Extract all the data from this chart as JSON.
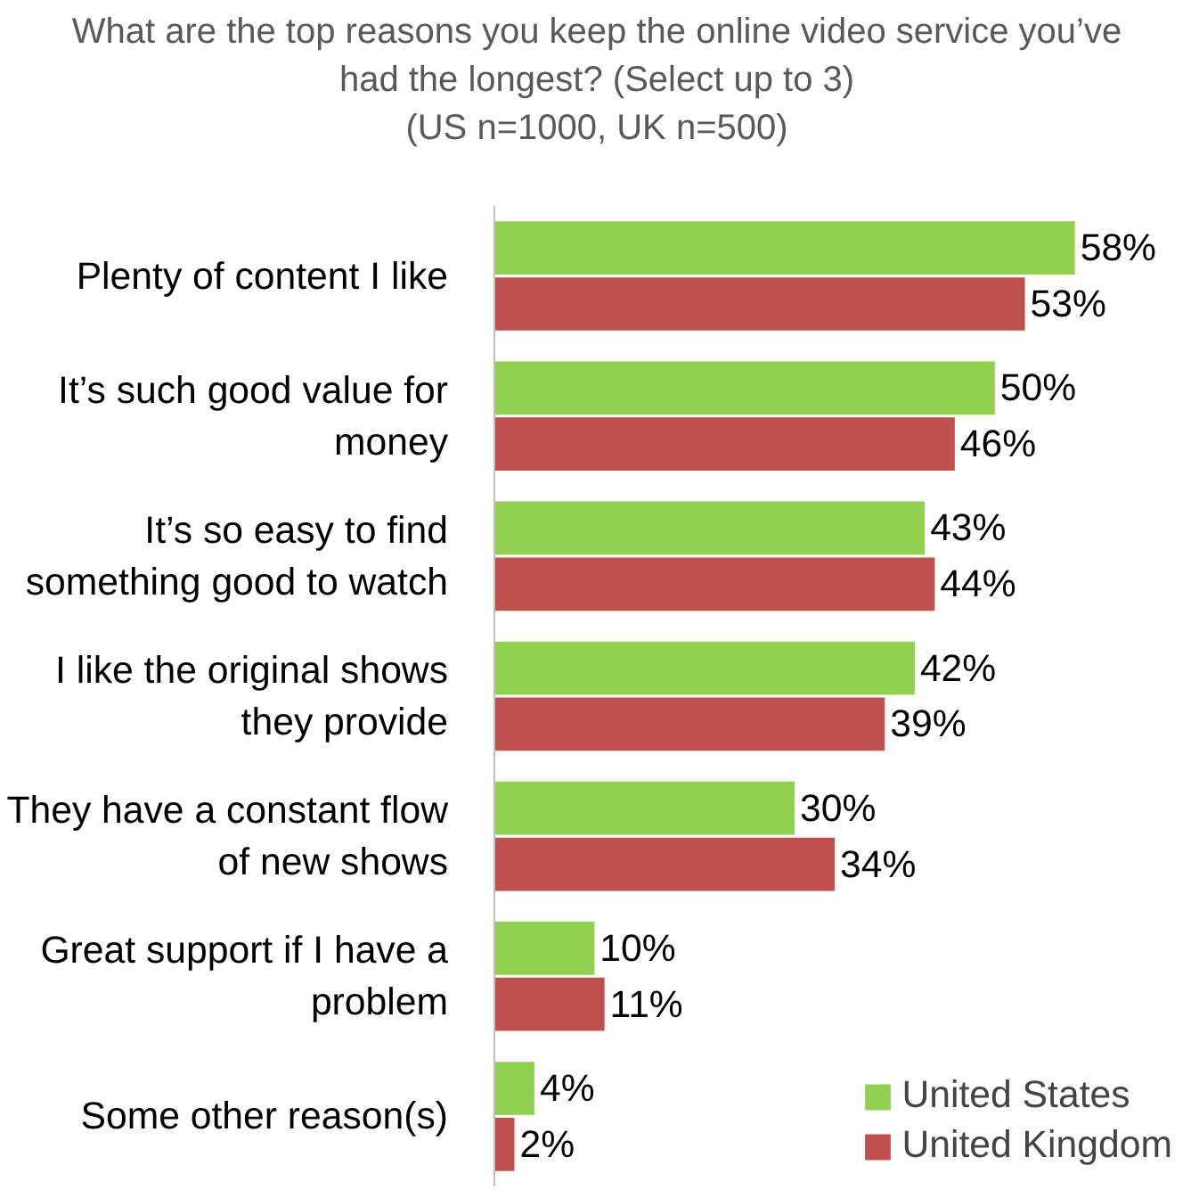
{
  "chart_data": {
    "type": "bar",
    "orientation": "horizontal",
    "title": "What are the top reasons you keep the online video service  you’ve had the longest? (Select up to 3)",
    "subtitle": "(US n=1000, UK n=500)",
    "categories": [
      "Plenty of content I like",
      "It’s such good value for money",
      "It’s so easy to find something good to watch",
      "I like the original shows they provide",
      "They have a constant flow of new shows",
      "Great support if I have a problem",
      "Some other reason(s)"
    ],
    "series": [
      {
        "name": "United States",
        "color": "#92d050",
        "values": [
          58,
          50,
          43,
          42,
          30,
          10,
          4
        ],
        "value_labels": [
          "58%",
          "50%",
          "43%",
          "42%",
          "30%",
          "10%",
          "4%"
        ]
      },
      {
        "name": "United Kingdom",
        "color": "#c0504d",
        "values": [
          53,
          46,
          44,
          39,
          34,
          11,
          2
        ],
        "value_labels": [
          "53%",
          "46%",
          "44%",
          "39%",
          "34%",
          "11%",
          "2%"
        ]
      }
    ],
    "legend": "bottom right",
    "grid": false
  }
}
